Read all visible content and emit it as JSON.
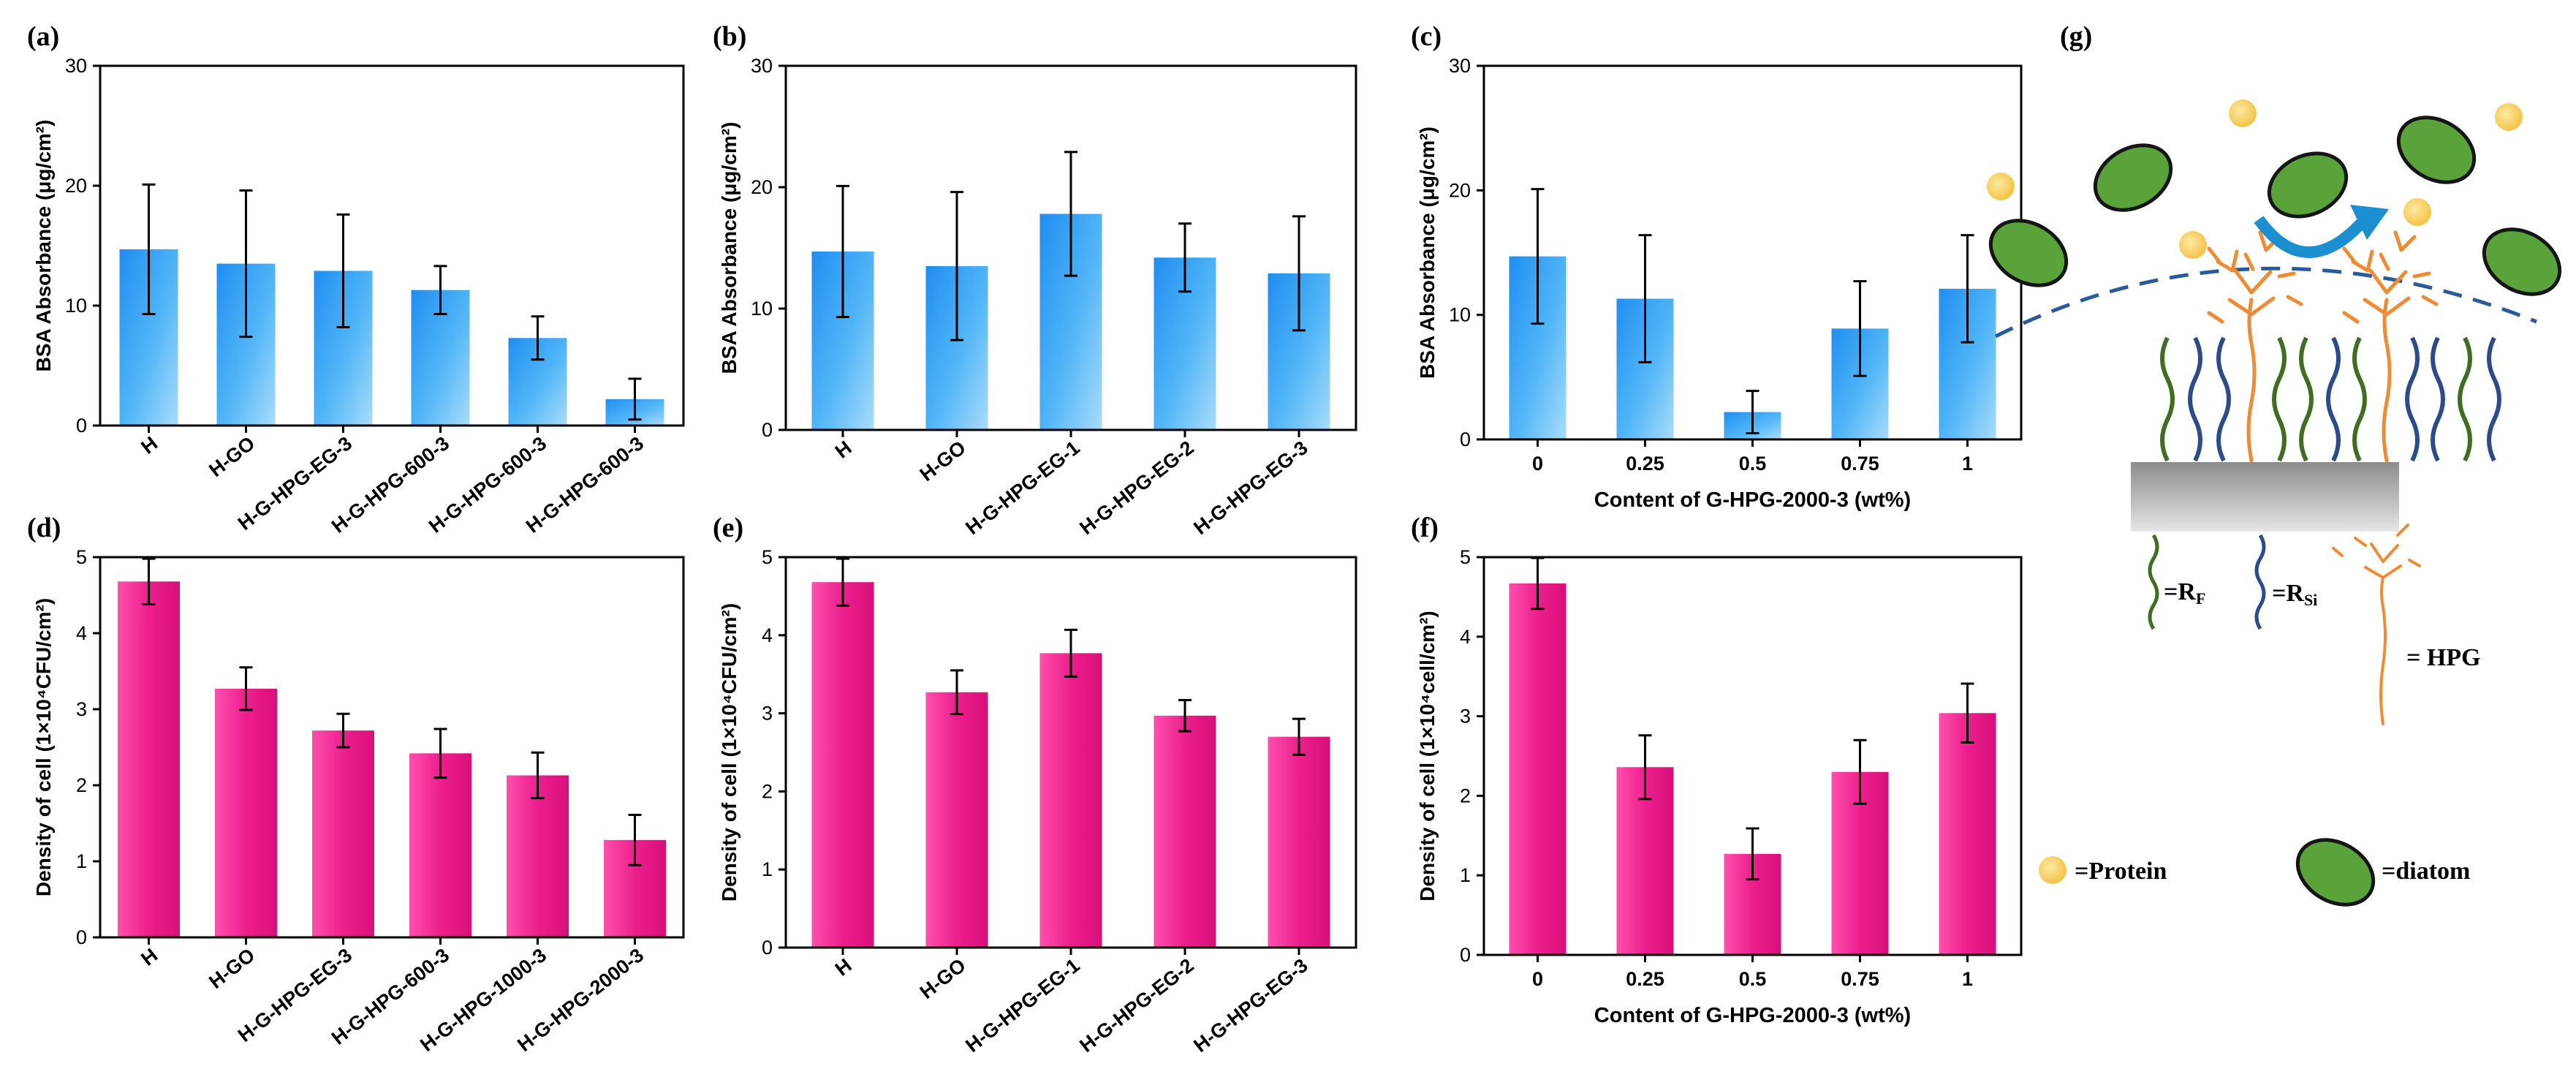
{
  "figure": {
    "schematic": {
      "panel_label": "(g)",
      "legend": {
        "rf": "=R",
        "rf_sub": "F",
        "rsi": "=R",
        "rsi_sub": "Si",
        "hpg": "= HPG",
        "protein": "=Protein",
        "diatom": "=diatom"
      },
      "colors": {
        "protein": "#f7cf5e",
        "diatom": "#5aa33a",
        "rf_chain": "#3f6e22",
        "rsi_chain": "#2a4c8a",
        "hpg": "#ef8a35",
        "arrow": "#1b8fd0"
      }
    }
  },
  "chart_data": [
    {
      "panel": "(a)",
      "type": "bar",
      "categories": [
        "H",
        "H-GO",
        "H-G-HPG-EG-3",
        "H-G-HPG-600-3",
        "H-G-HPG-600-3",
        "H-G-HPG-600-3"
      ],
      "values": [
        14.7,
        13.5,
        12.9,
        11.3,
        7.3,
        2.2
      ],
      "errors": [
        5.4,
        6.1,
        4.7,
        2.0,
        1.8,
        1.7
      ],
      "ylabel": "BSA Absorbance (μg/cm²)",
      "xlabel": "",
      "ylim": [
        0,
        30
      ],
      "yticks": [
        "0",
        "10",
        "20",
        "30"
      ],
      "color": "#33a7f5"
    },
    {
      "panel": "(b)",
      "type": "bar",
      "categories": [
        "H",
        "H-GO",
        "H-G-HPG-EG-1",
        "H-G-HPG-EG-2",
        "H-G-HPG-EG-3"
      ],
      "values": [
        14.7,
        13.5,
        17.8,
        14.2,
        12.9
      ],
      "errors": [
        5.4,
        6.1,
        5.1,
        2.8,
        4.7
      ],
      "ylabel": "BSA Absorbance (μg/cm²)",
      "xlabel": "",
      "ylim": [
        0,
        30
      ],
      "yticks": [
        "0",
        "10",
        "20",
        "30"
      ],
      "color": "#33a7f5"
    },
    {
      "panel": "(c)",
      "type": "bar",
      "categories": [
        "0",
        "0.25",
        "0.5",
        "0.75",
        "1"
      ],
      "values": [
        14.7,
        11.3,
        2.2,
        8.9,
        12.1
      ],
      "errors": [
        5.4,
        5.1,
        1.7,
        3.8,
        4.3
      ],
      "ylabel": "BSA Absorbance (μg/cm²)",
      "xlabel": "Content of G-HPG-2000-3 (wt%)",
      "ylim": [
        0,
        30
      ],
      "yticks": [
        "0",
        "10",
        "20",
        "30"
      ],
      "color": "#33a7f5"
    },
    {
      "panel": "(d)",
      "type": "bar",
      "categories": [
        "H",
        "H-GO",
        "H-G-HPG-EG-3",
        "H-G-HPG-600-3",
        "H-G-HPG-1000-3",
        "H-G-HPG-2000-3"
      ],
      "values": [
        4.68,
        3.27,
        2.72,
        2.42,
        2.13,
        1.28
      ],
      "errors": [
        0.3,
        0.28,
        0.22,
        0.32,
        0.3,
        0.33
      ],
      "ylabel": "Density of cell (1×10⁴CFU/cm²)",
      "xlabel": "",
      "ylim": [
        0,
        5
      ],
      "yticks": [
        "0",
        "1",
        "2",
        "3",
        "4",
        "5"
      ],
      "color": "#ec1f8c"
    },
    {
      "panel": "(e)",
      "type": "bar",
      "categories": [
        "H",
        "H-GO",
        "H-G-HPG-EG-1",
        "H-G-HPG-EG-2",
        "H-G-HPG-EG-3"
      ],
      "values": [
        4.68,
        3.27,
        3.77,
        2.97,
        2.7
      ],
      "errors": [
        0.3,
        0.28,
        0.3,
        0.2,
        0.23
      ],
      "ylabel": "Density of cell (1×10⁴CFU/cm²)",
      "xlabel": "",
      "ylim": [
        0,
        5
      ],
      "yticks": [
        "0",
        "1",
        "2",
        "3",
        "4",
        "5"
      ],
      "color": "#ec1f8c"
    },
    {
      "panel": "(f)",
      "type": "bar",
      "categories": [
        "0",
        "0.25",
        "0.5",
        "0.75",
        "1"
      ],
      "values": [
        4.67,
        2.36,
        1.27,
        2.3,
        3.04
      ],
      "errors": [
        0.32,
        0.4,
        0.32,
        0.4,
        0.37
      ],
      "ylabel": "Density of cell (1×10⁴cell/cm²)",
      "xlabel": "Content of G-HPG-2000-3 (wt%)",
      "ylim": [
        0,
        5
      ],
      "yticks": [
        "0",
        "1",
        "2",
        "3",
        "4",
        "5"
      ],
      "color": "#ec1f8c"
    }
  ]
}
